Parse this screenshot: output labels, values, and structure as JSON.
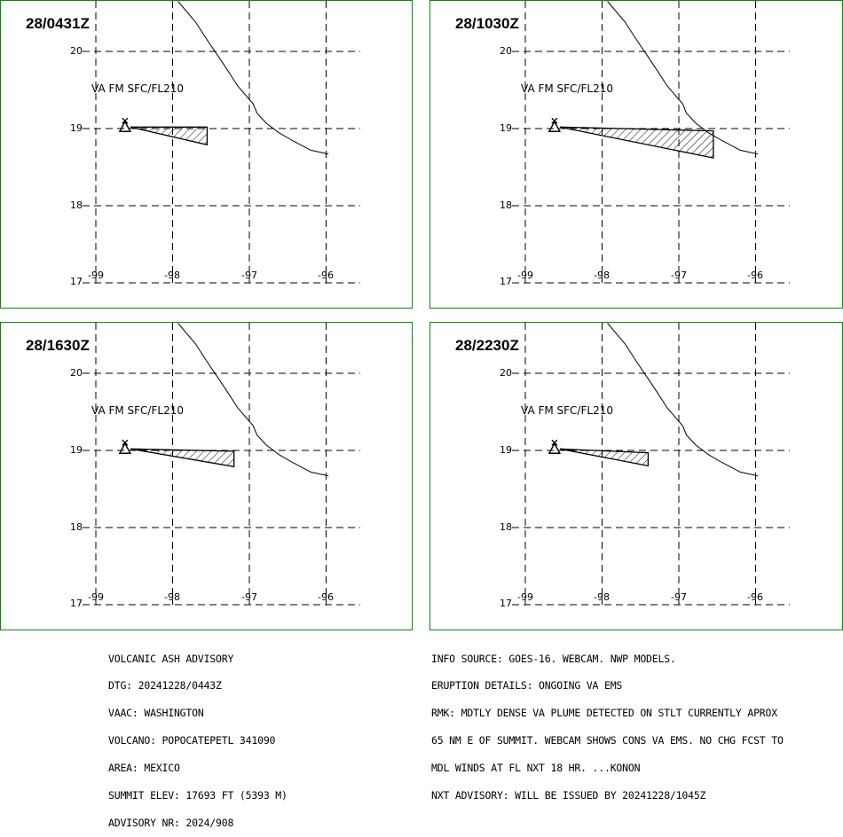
{
  "panels": [
    {
      "time": "28/0431Z",
      "va_label": "VA FM SFC/FL210",
      "plume": [
        [
          -98.55,
          19.02
        ],
        [
          -97.55,
          19.02
        ],
        [
          -97.55,
          18.79
        ]
      ]
    },
    {
      "time": "28/1030Z",
      "va_label": "VA FM SFC/FL210",
      "plume": [
        [
          -98.55,
          19.02
        ],
        [
          -96.55,
          18.97
        ],
        [
          -96.55,
          18.62
        ]
      ]
    },
    {
      "time": "28/1630Z",
      "va_label": "VA FM SFC/FL210",
      "plume": [
        [
          -98.55,
          19.02
        ],
        [
          -97.2,
          18.99
        ],
        [
          -97.2,
          18.79
        ]
      ]
    },
    {
      "time": "28/2230Z",
      "va_label": "VA FM SFC/FL210",
      "plume": [
        [
          -98.55,
          19.02
        ],
        [
          -97.4,
          18.97
        ],
        [
          -97.4,
          18.8
        ]
      ]
    }
  ],
  "map": {
    "lon_ticks": [
      "-99",
      "-98",
      "-97",
      "-96"
    ],
    "lat_ticks": [
      "20",
      "19",
      "18",
      "17"
    ],
    "volcano": {
      "lon": -98.62,
      "lat": 19.02
    },
    "coastline": [
      [
        -97.93,
        20.65
      ],
      [
        -97.7,
        20.38
      ],
      [
        -97.55,
        20.15
      ],
      [
        -97.38,
        19.9
      ],
      [
        -97.28,
        19.75
      ],
      [
        -97.15,
        19.55
      ],
      [
        -96.95,
        19.32
      ],
      [
        -96.9,
        19.2
      ],
      [
        -96.78,
        19.07
      ],
      [
        -96.62,
        18.95
      ],
      [
        -96.45,
        18.85
      ],
      [
        -96.2,
        18.72
      ],
      [
        -95.97,
        18.67
      ]
    ]
  },
  "advisory_left": [
    "VOLCANIC ASH ADVISORY",
    "DTG: 20241228/0443Z",
    "VAAC: WASHINGTON",
    "VOLCANO: POPOCATEPETL 341090",
    "AREA: MEXICO",
    "SUMMIT ELEV: 17693 FT (5393 M)",
    "ADVISORY NR: 2024/908"
  ],
  "advisory_right": [
    "INFO SOURCE: GOES-16. WEBCAM. NWP MODELS.",
    "ERUPTION DETAILS: ONGOING VA EMS",
    "RMK: MDTLY DENSE VA PLUME DETECTED ON STLT CURRENTLY APROX",
    "65 NM E OF SUMMIT. WEBCAM SHOWS CONS VA EMS. NO CHG FCST TO",
    "MDL WINDS AT FL NXT 18 HR. ...KONON",
    "NXT ADVISORY: WILL BE ISSUED BY 20241228/1045Z"
  ],
  "colors": {
    "panel_border": "#0a8a0a",
    "lines": "#000000",
    "background": "#ffffff"
  }
}
